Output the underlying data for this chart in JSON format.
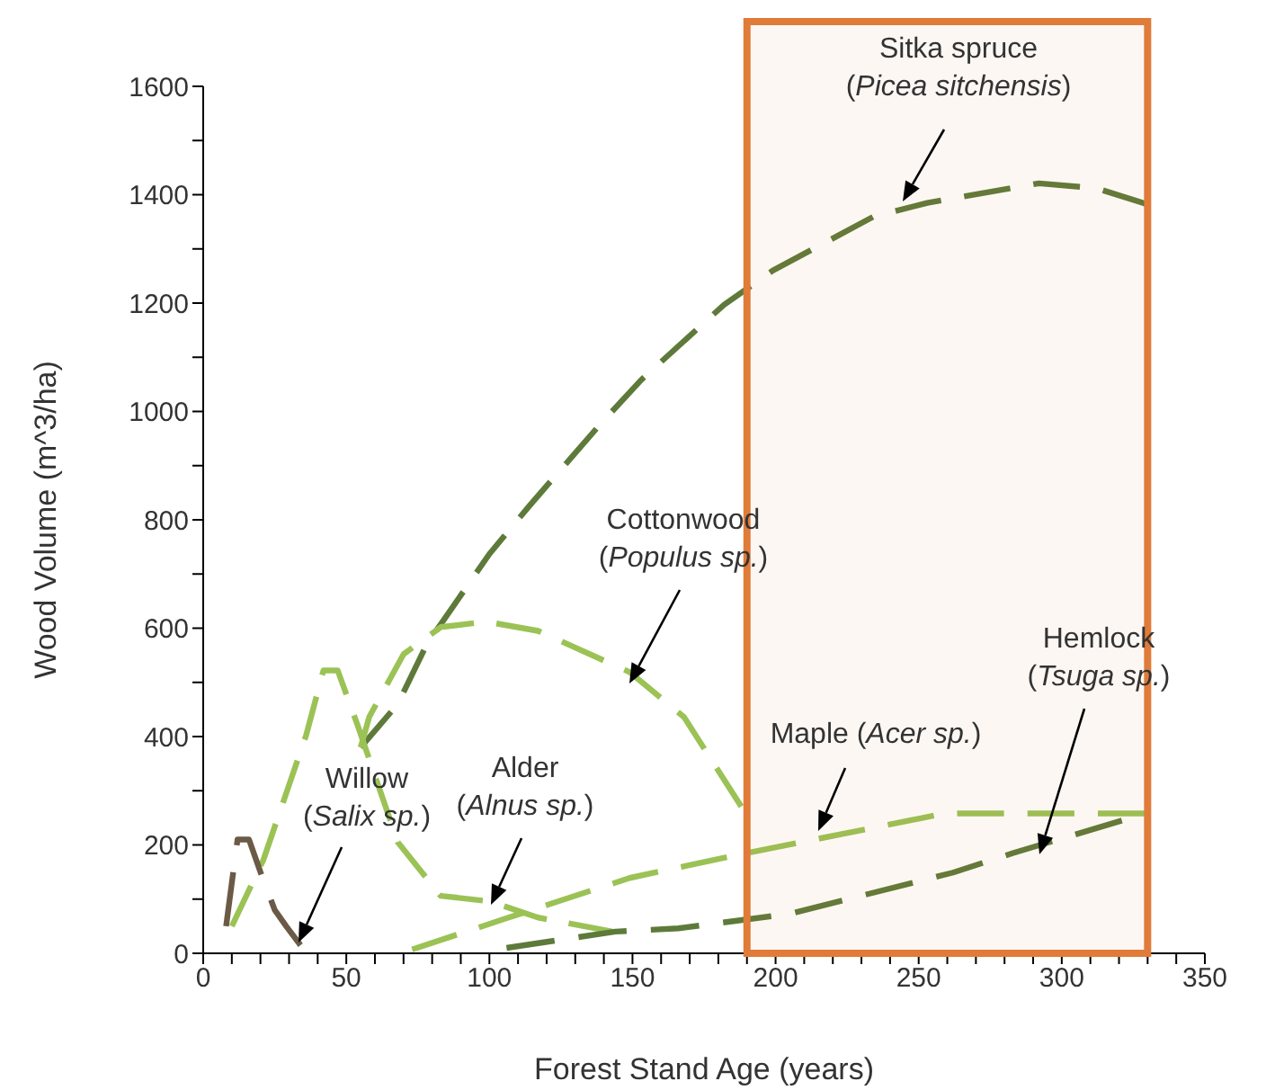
{
  "chart_data": {
    "type": "line",
    "xlabel": "Forest Stand Age (years)",
    "ylabel": "Wood Volume (m^3/ha)",
    "xlim": [
      0,
      350
    ],
    "ylim": [
      0,
      1600
    ],
    "xticks": [
      0,
      {
        "value": 10,
        "label": null
      },
      {
        "value": 20,
        "label": null
      },
      {
        "value": 30,
        "label": null
      },
      {
        "value": 40,
        "label": null
      },
      50,
      {
        "value": 60,
        "label": null
      },
      {
        "value": 70,
        "label": null
      },
      {
        "value": 80,
        "label": null
      },
      {
        "value": 90,
        "label": null
      },
      100,
      {
        "value": 110,
        "label": null
      },
      {
        "value": 120,
        "label": null
      },
      {
        "value": 130,
        "label": null
      },
      {
        "value": 140,
        "label": null
      },
      150,
      {
        "value": 160,
        "label": null
      },
      {
        "value": 170,
        "label": null
      },
      {
        "value": 180,
        "label": null
      },
      {
        "value": 190,
        "label": null
      },
      200,
      {
        "value": 210,
        "label": null
      },
      {
        "value": 220,
        "label": null
      },
      {
        "value": 230,
        "label": null
      },
      {
        "value": 240,
        "label": null
      },
      250,
      {
        "value": 260,
        "label": null
      },
      {
        "value": 270,
        "label": null
      },
      {
        "value": 280,
        "label": null
      },
      {
        "value": 290,
        "label": null
      },
      300,
      {
        "value": 310,
        "label": null
      },
      {
        "value": 320,
        "label": null
      },
      {
        "value": 330,
        "label": null
      },
      {
        "value": 340,
        "label": null
      },
      350
    ],
    "yticks": [
      0,
      {
        "value": 100,
        "label": null
      },
      200,
      {
        "value": 300,
        "label": null
      },
      400,
      {
        "value": 500,
        "label": null
      },
      600,
      {
        "value": 700,
        "label": null
      },
      800,
      {
        "value": 900,
        "label": null
      },
      1000,
      {
        "value": 1100,
        "label": null
      },
      1200,
      {
        "value": 1300,
        "label": null
      },
      1400,
      {
        "value": 1500,
        "label": null
      },
      1600
    ],
    "grid": false,
    "legend": false,
    "marker": "none",
    "line_style": "dashed",
    "bands": [
      {
        "axis": "x",
        "from": 190,
        "to": 330,
        "color": "#e07b39"
      }
    ],
    "series": [
      {
        "name": "Sitka spruce (Picea sitchensis)",
        "color": "#5e7a3a",
        "x": [
          55,
          68,
          78,
          100,
          114,
          139,
          153,
          182,
          199,
          234,
          253,
          292,
          312,
          330
        ],
        "values": [
          380,
          460,
          569,
          737,
          826,
          978,
          1058,
          1197,
          1260,
          1359,
          1385,
          1421,
          1412,
          1382
        ]
      },
      {
        "name": "Cottonwood (Populus sp.)",
        "color": "#9bc255",
        "x": [
          55,
          58,
          70,
          83,
          99,
          117,
          149,
          168,
          188
        ],
        "values": [
          380,
          436,
          552,
          602,
          612,
          595,
          519,
          436,
          271
        ]
      },
      {
        "name": "Alder (Alnus sp.)",
        "color": "#9bc255",
        "x": [
          10,
          21,
          36,
          42,
          47,
          54,
          68,
          83,
          100,
          117,
          143
        ],
        "values": [
          50,
          172,
          403,
          522,
          522,
          420,
          205,
          106,
          96,
          66,
          40
        ]
      },
      {
        "name": "Willow (Salix sp.)",
        "color": "#6b5a45",
        "x": [
          8,
          12,
          16,
          20,
          25,
          29,
          34
        ],
        "values": [
          50,
          210,
          210,
          150,
          80,
          50,
          15
        ]
      },
      {
        "name": "Maple (Acer sp.)",
        "color": "#9bc255",
        "x": [
          73,
          105,
          149,
          187,
          224,
          259,
          281,
          329
        ],
        "values": [
          7,
          63,
          139,
          182,
          221,
          258,
          258,
          258
        ]
      },
      {
        "name": "Hemlock (Tsuga sp.)",
        "color": "#5e7a3a",
        "x": [
          106,
          144,
          166,
          205,
          262,
          283,
          321
        ],
        "values": [
          10,
          40,
          46,
          73,
          149,
          185,
          245
        ]
      }
    ]
  }
}
